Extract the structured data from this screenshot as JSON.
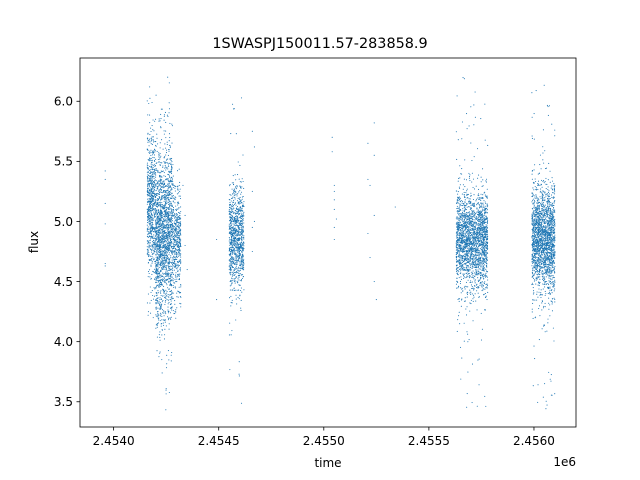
{
  "chart_data": {
    "type": "scatter",
    "title": "1SWASPJ150011.57-283858.9",
    "xlabel": "time",
    "ylabel": "flux",
    "x_offset_label": "1e6",
    "xlim": [
      2.45384,
      2.4562
    ],
    "ylim": [
      3.29,
      6.36
    ],
    "grid": false,
    "legend": "none",
    "color": "#1f77b4",
    "x_ticks": [
      {
        "value": 2.454,
        "label": "2.4540"
      },
      {
        "value": 2.4545,
        "label": "2.4545"
      },
      {
        "value": 2.455,
        "label": "2.4550"
      },
      {
        "value": 2.4555,
        "label": "2.4555"
      },
      {
        "value": 2.456,
        "label": "2.4560"
      }
    ],
    "y_ticks": [
      {
        "value": 3.5,
        "label": "3.5"
      },
      {
        "value": 4.0,
        "label": "4.0"
      },
      {
        "value": 4.5,
        "label": "4.5"
      },
      {
        "value": 5.0,
        "label": "5.0"
      },
      {
        "value": 5.5,
        "label": "5.5"
      },
      {
        "value": 6.0,
        "label": "6.0"
      }
    ],
    "clusters": [
      {
        "x_range": [
          2.45416,
          2.4542
        ],
        "center": 5.15,
        "spread": 0.3,
        "count": 700,
        "min": 4.2,
        "max": 6.28
      },
      {
        "x_range": [
          2.4542,
          2.45424
        ],
        "center": 4.85,
        "spread": 0.35,
        "count": 900,
        "min": 3.5,
        "max": 6.1
      },
      {
        "x_range": [
          2.45424,
          2.45428
        ],
        "center": 4.9,
        "spread": 0.35,
        "count": 850,
        "min": 3.4,
        "max": 6.2
      },
      {
        "x_range": [
          2.45428,
          2.45432
        ],
        "center": 4.85,
        "spread": 0.22,
        "count": 450,
        "min": 4.1,
        "max": 5.6
      },
      {
        "x_range": [
          2.45455,
          2.45462
        ],
        "center": 4.85,
        "spread": 0.22,
        "count": 1000,
        "min": 3.45,
        "max": 6.12
      },
      {
        "x_range": [
          2.45563,
          2.45578
        ],
        "center": 4.85,
        "spread": 0.2,
        "count": 2200,
        "min": 3.45,
        "max": 6.2
      },
      {
        "x_range": [
          2.45599,
          2.4561
        ],
        "center": 4.85,
        "spread": 0.22,
        "count": 2000,
        "min": 3.42,
        "max": 6.22
      }
    ],
    "sparse_points": [
      {
        "x": 2.45396,
        "y": 5.42
      },
      {
        "x": 2.45396,
        "y": 5.35
      },
      {
        "x": 2.45396,
        "y": 5.15
      },
      {
        "x": 2.45396,
        "y": 4.98
      },
      {
        "x": 2.45396,
        "y": 4.63
      },
      {
        "x": 2.45396,
        "y": 4.65
      },
      {
        "x": 2.45433,
        "y": 5.3
      },
      {
        "x": 2.45434,
        "y": 5.05
      },
      {
        "x": 2.45434,
        "y": 4.8
      },
      {
        "x": 2.45435,
        "y": 4.6
      },
      {
        "x": 2.45449,
        "y": 4.85
      },
      {
        "x": 2.45449,
        "y": 4.35
      },
      {
        "x": 2.45466,
        "y": 5.75
      },
      {
        "x": 2.45467,
        "y": 5.62
      },
      {
        "x": 2.45466,
        "y": 5.25
      },
      {
        "x": 2.45467,
        "y": 5.0
      },
      {
        "x": 2.45466,
        "y": 4.95
      },
      {
        "x": 2.45466,
        "y": 4.75
      },
      {
        "x": 2.45504,
        "y": 5.7
      },
      {
        "x": 2.45504,
        "y": 5.58
      },
      {
        "x": 2.45505,
        "y": 5.3
      },
      {
        "x": 2.45505,
        "y": 5.25
      },
      {
        "x": 2.45505,
        "y": 5.18
      },
      {
        "x": 2.45505,
        "y": 5.1
      },
      {
        "x": 2.45506,
        "y": 5.02
      },
      {
        "x": 2.45505,
        "y": 4.95
      },
      {
        "x": 2.45505,
        "y": 4.85
      },
      {
        "x": 2.45521,
        "y": 5.65
      },
      {
        "x": 2.45521,
        "y": 5.35
      },
      {
        "x": 2.45522,
        "y": 5.3
      },
      {
        "x": 2.45521,
        "y": 4.9
      },
      {
        "x": 2.45522,
        "y": 4.7
      },
      {
        "x": 2.45524,
        "y": 5.82
      },
      {
        "x": 2.45524,
        "y": 5.55
      },
      {
        "x": 2.45524,
        "y": 5.05
      },
      {
        "x": 2.45524,
        "y": 4.5
      },
      {
        "x": 2.45525,
        "y": 4.35
      },
      {
        "x": 2.45534,
        "y": 5.12
      }
    ]
  }
}
